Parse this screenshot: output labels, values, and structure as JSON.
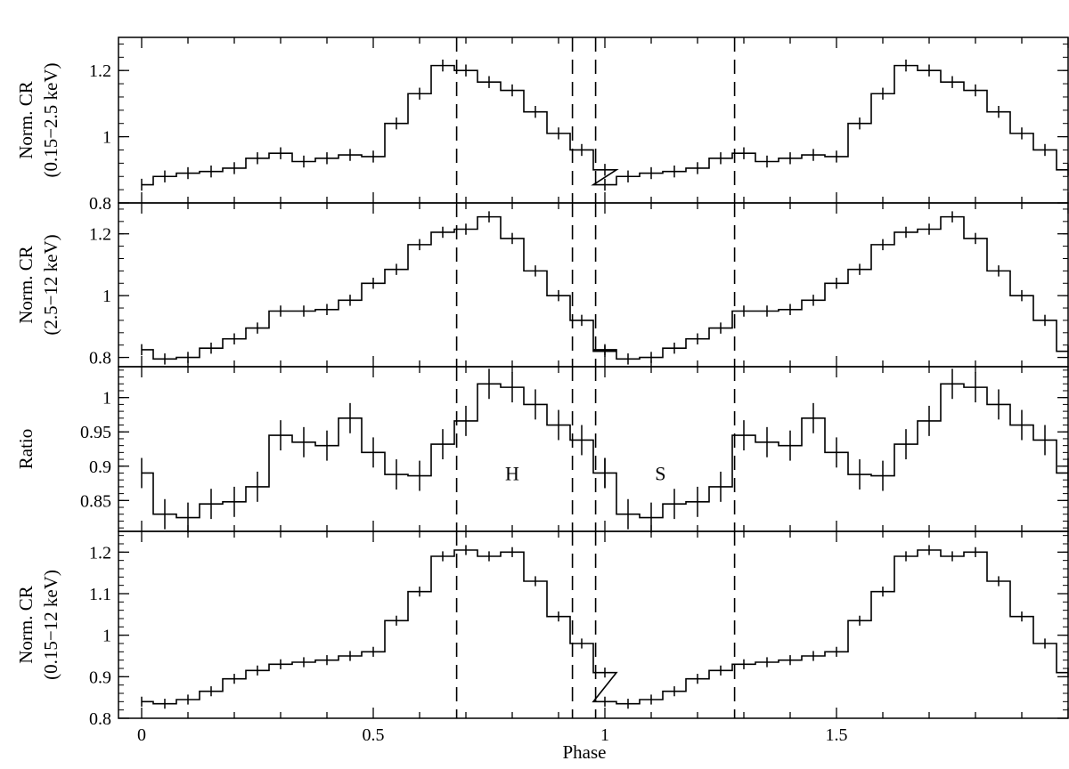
{
  "chart_data": {
    "type": "line",
    "style": "step-histogram with vertical error bars",
    "xlabel": "Phase",
    "xlim": [
      -0.05,
      2.0
    ],
    "xticks": [
      0,
      0.5,
      1,
      1.5
    ],
    "xtick_labels": [
      "0",
      "0.5",
      "1",
      "1.5"
    ],
    "vertical_dashed_lines": [
      0.68,
      0.93,
      0.98,
      1.28
    ],
    "bin_width": 0.05,
    "panels": [
      {
        "ylabel_line1": "Norm. CR",
        "ylabel_line2": "(0.15−2.5 keV)",
        "ylim": [
          0.8,
          1.3
        ],
        "yticks": [
          0.8,
          1,
          1.2
        ],
        "ytick_labels": [
          "0.8",
          "1",
          "1.2"
        ],
        "values": [
          0.855,
          0.88,
          0.89,
          0.895,
          0.905,
          0.935,
          0.95,
          0.925,
          0.935,
          0.945,
          0.94,
          1.04,
          1.13,
          1.215,
          1.2,
          1.165,
          1.14,
          1.075,
          1.01,
          0.96,
          0.9
        ],
        "error": 0.018,
        "annotations": []
      },
      {
        "ylabel_line1": "Norm. CR",
        "ylabel_line2": "(2.5−12 keV)",
        "ylim": [
          0.77,
          1.3
        ],
        "yticks": [
          0.8,
          1,
          1.2
        ],
        "ytick_labels": [
          "0.8",
          "1",
          "1.2"
        ],
        "values": [
          0.825,
          0.795,
          0.8,
          0.83,
          0.86,
          0.895,
          0.95,
          0.95,
          0.955,
          0.985,
          1.04,
          1.085,
          1.165,
          1.205,
          1.215,
          1.255,
          1.185,
          1.08,
          1.0,
          0.92,
          0.82
        ],
        "error": 0.018,
        "annotations": []
      },
      {
        "ylabel_line1": "Ratio",
        "ylabel_line2": "",
        "ylim": [
          0.805,
          1.045
        ],
        "yticks": [
          0.85,
          0.9,
          0.95,
          1
        ],
        "ytick_labels": [
          "0.85",
          "0.9",
          "0.95",
          "1"
        ],
        "values": [
          0.89,
          0.83,
          0.825,
          0.845,
          0.848,
          0.87,
          0.945,
          0.935,
          0.93,
          0.97,
          0.92,
          0.888,
          0.886,
          0.932,
          0.966,
          1.02,
          1.015,
          0.99,
          0.96,
          0.938,
          0.89
        ],
        "error": 0.022,
        "annotations": [
          {
            "text": "H",
            "x": 0.8,
            "y": 0.89
          },
          {
            "text": "S",
            "x": 1.12,
            "y": 0.89
          }
        ]
      },
      {
        "ylabel_line1": "Norm. CR",
        "ylabel_line2": "(0.15−12 keV)",
        "ylim": [
          0.8,
          1.25
        ],
        "yticks": [
          0.8,
          0.9,
          1,
          1.1,
          1.2
        ],
        "ytick_labels": [
          "0.8",
          "0.9",
          "1",
          "1.1",
          "1.2"
        ],
        "values": [
          0.84,
          0.835,
          0.845,
          0.865,
          0.895,
          0.915,
          0.93,
          0.935,
          0.94,
          0.95,
          0.96,
          1.035,
          1.105,
          1.19,
          1.205,
          1.19,
          1.2,
          1.13,
          1.045,
          0.98,
          0.91
        ],
        "error": 0.012,
        "annotations": []
      }
    ]
  }
}
